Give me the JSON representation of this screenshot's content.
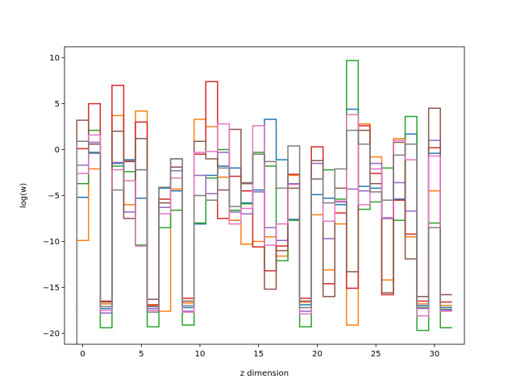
{
  "chart_data": {
    "type": "line",
    "title": "",
    "xlabel": "z dimension",
    "ylabel": "log(w)",
    "xlim": [
      -1.55,
      32.55
    ],
    "ylim": [
      -21.2,
      11.2
    ],
    "xticks": [
      0,
      5,
      10,
      15,
      20,
      25,
      30
    ],
    "yticks": [
      -20,
      -15,
      -10,
      -5,
      0,
      5,
      10
    ],
    "grid": false,
    "legend": "none",
    "step_width": 0.5,
    "series": [
      {
        "color": "#1f77b4",
        "x": [
          0,
          1,
          2,
          3,
          4,
          5,
          6,
          7,
          8,
          9,
          10,
          11,
          12,
          13,
          14,
          15,
          16,
          17,
          18,
          19,
          20,
          21,
          22,
          23,
          24,
          25,
          26,
          27,
          28,
          29,
          30,
          31
        ],
        "values": [
          -5.2,
          -0.3,
          -17.3,
          -1.5,
          -1.1,
          -5.3,
          -17.1,
          -4.2,
          -4.5,
          -17.2,
          -8.1,
          -2.8,
          -1.8,
          -2.0,
          -5.8,
          -4.4,
          3.3,
          -1.1,
          -7.6,
          -16.9,
          -4.9,
          -5.3,
          -6.0,
          4.4,
          -4.0,
          -4.2,
          -7.5,
          -5.4,
          1.7,
          -17.0,
          -0.4,
          -17.2
        ]
      },
      {
        "color": "#ff7f0e",
        "x": [
          0,
          1,
          2,
          3,
          4,
          5,
          6,
          7,
          8,
          9,
          10,
          11,
          12,
          13,
          14,
          15,
          16,
          17,
          18,
          19,
          20,
          21,
          22,
          23,
          24,
          25,
          26,
          27,
          28,
          29,
          30,
          31
        ],
        "values": [
          -9.9,
          -2.1,
          -16.8,
          3.7,
          -6.0,
          4.2,
          -17.0,
          -17.6,
          -4.3,
          -16.7,
          3.3,
          2.5,
          -3.0,
          -7.7,
          -10.3,
          -10.0,
          -9.5,
          -11.6,
          -2.8,
          -16.6,
          -7.1,
          -13.1,
          -8.1,
          -19.1,
          2.8,
          -0.8,
          -14.2,
          1.2,
          -9.5,
          -16.8,
          -4.5,
          -17.0
        ]
      },
      {
        "color": "#2ca02c",
        "x": [
          0,
          1,
          2,
          3,
          4,
          5,
          6,
          7,
          8,
          9,
          10,
          11,
          12,
          13,
          14,
          15,
          16,
          17,
          18,
          19,
          20,
          21,
          22,
          23,
          24,
          25,
          26,
          27,
          28,
          29,
          30,
          31
        ],
        "values": [
          -3.7,
          2.1,
          -19.4,
          -1.8,
          -2.4,
          -10.4,
          -19.3,
          -8.5,
          -6.6,
          -19.1,
          -8.0,
          -3.1,
          0.0,
          -6.6,
          -5.9,
          -0.3,
          -1.8,
          -12.1,
          -7.7,
          -19.3,
          -1.2,
          -2.2,
          -5.4,
          9.7,
          -6.5,
          -5.7,
          -2.0,
          -7.7,
          3.6,
          -19.7,
          -8.0,
          -19.4
        ]
      },
      {
        "color": "#d62728",
        "x": [
          0,
          1,
          2,
          3,
          4,
          5,
          6,
          7,
          8,
          9,
          10,
          11,
          12,
          13,
          14,
          15,
          16,
          17,
          18,
          19,
          20,
          21,
          22,
          23,
          24,
          25,
          26,
          27,
          28,
          29,
          30,
          31
        ],
        "values": [
          0.1,
          5.0,
          -16.5,
          7.0,
          -1.3,
          3.0,
          -16.9,
          -5.4,
          -1.0,
          -16.2,
          -0.5,
          7.4,
          -7.5,
          -2.9,
          -4.5,
          -10.6,
          -13.2,
          -10.5,
          -2.7,
          -16.2,
          0.3,
          -14.6,
          -6.9,
          -15.1,
          2.6,
          -2.6,
          -15.8,
          -5.5,
          -9.2,
          -16.5,
          0.2,
          -16.6
        ]
      },
      {
        "color": "#9467bd",
        "x": [
          0,
          1,
          2,
          3,
          4,
          5,
          6,
          7,
          8,
          9,
          10,
          11,
          12,
          13,
          14,
          15,
          16,
          17,
          18,
          19,
          20,
          21,
          22,
          23,
          24,
          25,
          26,
          27,
          28,
          29,
          30,
          31
        ],
        "values": [
          -1.7,
          0.8,
          -17.8,
          -1.4,
          -6.8,
          -2.2,
          -17.3,
          -6.3,
          -2.3,
          -17.6,
          -2.8,
          -4.8,
          -0.3,
          -6.8,
          -7.0,
          -4.6,
          -8.5,
          -9.9,
          -3.7,
          -17.6,
          -1.5,
          -9.7,
          -5.7,
          -4.3,
          -4.5,
          -1.5,
          -7.5,
          -3.6,
          -6.7,
          -17.3,
          1.0,
          -17.5
        ]
      },
      {
        "color": "#8c564b",
        "x": [
          0,
          1,
          2,
          3,
          4,
          5,
          6,
          7,
          8,
          9,
          10,
          11,
          12,
          13,
          14,
          15,
          16,
          17,
          18,
          19,
          20,
          21,
          22,
          23,
          24,
          25,
          26,
          27,
          28,
          29,
          30,
          31
        ],
        "values": [
          3.2,
          0.6,
          -16.6,
          2.0,
          -7.5,
          1.2,
          -16.3,
          -5.8,
          -1.9,
          -16.5,
          0.9,
          -1.0,
          -4.4,
          2.2,
          -3.7,
          -0.5,
          -15.2,
          -11.0,
          -4.2,
          -16.5,
          -1.2,
          -16.0,
          -4.2,
          -13.3,
          2.1,
          -3.7,
          -15.6,
          0.8,
          -11.9,
          -16.0,
          4.5,
          -15.8
        ]
      },
      {
        "color": "#e377c2",
        "x": [
          0,
          1,
          2,
          3,
          4,
          5,
          6,
          7,
          8,
          9,
          10,
          11,
          12,
          13,
          14,
          15,
          16,
          17,
          18,
          19,
          20,
          21,
          22,
          23,
          24,
          25,
          26,
          27,
          28,
          29,
          30,
          31
        ],
        "values": [
          -2.6,
          1.6,
          -17.5,
          -2.2,
          -3.4,
          -10.5,
          -17.5,
          -7.0,
          -3.1,
          -17.7,
          -0.3,
          -0.2,
          2.8,
          -8.1,
          -6.4,
          2.6,
          -10.4,
          -8.1,
          -3.8,
          -17.9,
          -3.2,
          -7.8,
          -5.6,
          3.8,
          -6.0,
          -2.1,
          -7.4,
          1.0,
          -1.1,
          -18.1,
          -0.7,
          -17.6
        ]
      },
      {
        "color": "#7f7f7f",
        "x": [
          0,
          1,
          2,
          3,
          4,
          5,
          6,
          7,
          8,
          9,
          10,
          11,
          12,
          13,
          14,
          15,
          16,
          17,
          18,
          19,
          20,
          21,
          22,
          23,
          24,
          25,
          26,
          27,
          28,
          29,
          30,
          31
        ],
        "values": [
          0.9,
          -0.4,
          -17.1,
          -4.4,
          -1.2,
          -2.2,
          -17.7,
          -4.1,
          -1.0,
          -17.0,
          -5.0,
          -5.5,
          -2.0,
          -6.2,
          -3.6,
          -0.5,
          -1.3,
          -4.2,
          0.4,
          -17.2,
          -3.2,
          -5.8,
          -2.1,
          2.1,
          0.6,
          -4.6,
          -5.5,
          -0.6,
          0.6,
          -17.2,
          -8.5,
          -17.4
        ]
      }
    ]
  }
}
